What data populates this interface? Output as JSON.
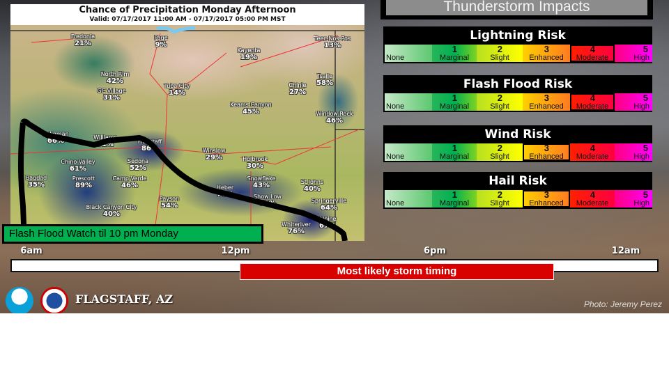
{
  "map": {
    "title": "Chance of Precipitation Monday Afternoon",
    "valid": "Valid: 07/17/2017 11:00 AM - 07/17/2017 05:00 PM MST",
    "places": [
      {
        "name": "Fredonia",
        "pct": "21%"
      },
      {
        "name": "Page",
        "pct": "9%"
      },
      {
        "name": "Kayenta",
        "pct": "19%"
      },
      {
        "name": "Teec-Nos-Pos",
        "pct": "13%"
      },
      {
        "name": "North Rim",
        "pct": "42%"
      },
      {
        "name": "GC Village",
        "pct": "31%"
      },
      {
        "name": "Tuba City",
        "pct": "14%"
      },
      {
        "name": "Chinle",
        "pct": "27%"
      },
      {
        "name": "Tsaile",
        "pct": "58%"
      },
      {
        "name": "Keams Canyon",
        "pct": "45%"
      },
      {
        "name": "Window Rock",
        "pct": "46%"
      },
      {
        "name": "Seligman",
        "pct": "66%"
      },
      {
        "name": "Williams",
        "pct": "91%"
      },
      {
        "name": "Flagstaff",
        "pct": "86%"
      },
      {
        "name": "Winslow",
        "pct": "29%"
      },
      {
        "name": "Holbrook",
        "pct": "30%"
      },
      {
        "name": "Sedona",
        "pct": "52%"
      },
      {
        "name": "Chino Valley",
        "pct": "61%"
      },
      {
        "name": "Bagdad",
        "pct": "35%"
      },
      {
        "name": "Prescott",
        "pct": "89%"
      },
      {
        "name": "Camp Verde",
        "pct": "46%"
      },
      {
        "name": "Snowflake",
        "pct": "43%"
      },
      {
        "name": "St Johns",
        "pct": "40%"
      },
      {
        "name": "Heber",
        "pct": "76%"
      },
      {
        "name": "Payson",
        "pct": "54%"
      },
      {
        "name": "Show Low",
        "pct": "79%"
      },
      {
        "name": "Springerville",
        "pct": "64%"
      },
      {
        "name": "Black Canyon City",
        "pct": "40%"
      },
      {
        "name": "Whiteriver",
        "pct": "76%"
      },
      {
        "name": "Alpine",
        "pct": "67%"
      }
    ],
    "watch": "Flash Flood Watch til 10 pm Monday"
  },
  "impacts": {
    "title": "Thunderstorm Impacts",
    "levels": [
      {
        "num": "",
        "label": "None"
      },
      {
        "num": "1",
        "label": "Marginal"
      },
      {
        "num": "2",
        "label": "Slight"
      },
      {
        "num": "3",
        "label": "Enhanced"
      },
      {
        "num": "4",
        "label": "Moderate"
      },
      {
        "num": "5",
        "label": "High"
      }
    ],
    "risks": [
      {
        "name": "Lightning Risk",
        "level": 4
      },
      {
        "name": "Flash Flood Risk",
        "level": 4
      },
      {
        "name": "Wind Risk",
        "level": 3
      },
      {
        "name": "Hail Risk",
        "level": 3
      }
    ]
  },
  "timeline": {
    "ticks": [
      "6am",
      "12pm",
      "6pm",
      "12am"
    ],
    "storm_label": "Most likely storm timing"
  },
  "footer": {
    "office": "FLAGSTAFF, AZ",
    "credit": "Photo: Jeremy Perez",
    "logos": [
      "NOAA",
      "National Weather Service"
    ]
  }
}
